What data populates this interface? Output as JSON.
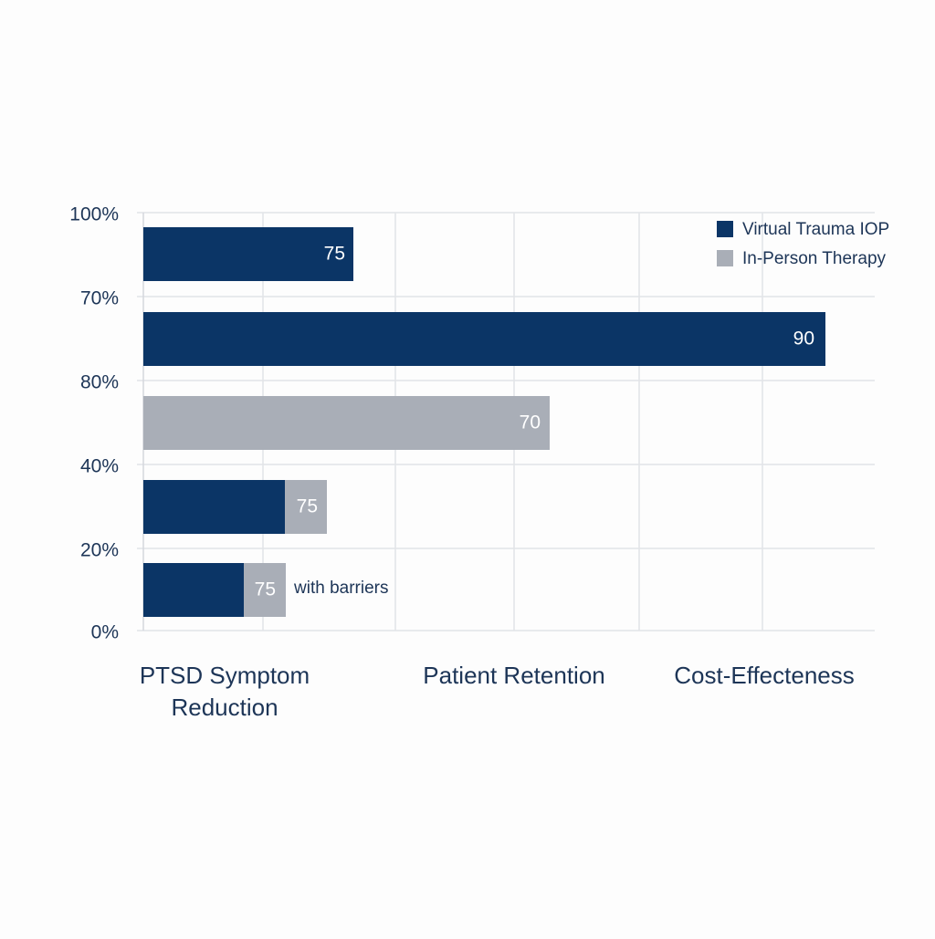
{
  "y_labels": [
    "100%",
    "70%",
    "80%",
    "40%",
    "20%",
    "0%"
  ],
  "categories": [
    "PTSD Symptom Reduction",
    "Patient Retention",
    "Cost-Effecteness"
  ],
  "legend": [
    {
      "name": "Virtual Trauma IOP",
      "color": "#0b3566"
    },
    {
      "name": "In-Person Therapy",
      "color": "#a9aeb7"
    }
  ],
  "bars": [
    {
      "label": "75",
      "colors": [
        "#0b3566"
      ]
    },
    {
      "label": "90",
      "colors": [
        "#0b3566"
      ]
    },
    {
      "label": "70",
      "colors": [
        "#a9aeb7"
      ]
    },
    {
      "label": "75",
      "colors": [
        "#0b3566",
        "#a9aeb7"
      ]
    },
    {
      "label": "75",
      "colors": [
        "#0b3566",
        "#a9aeb7"
      ]
    }
  ],
  "annotation": "with barriers"
}
